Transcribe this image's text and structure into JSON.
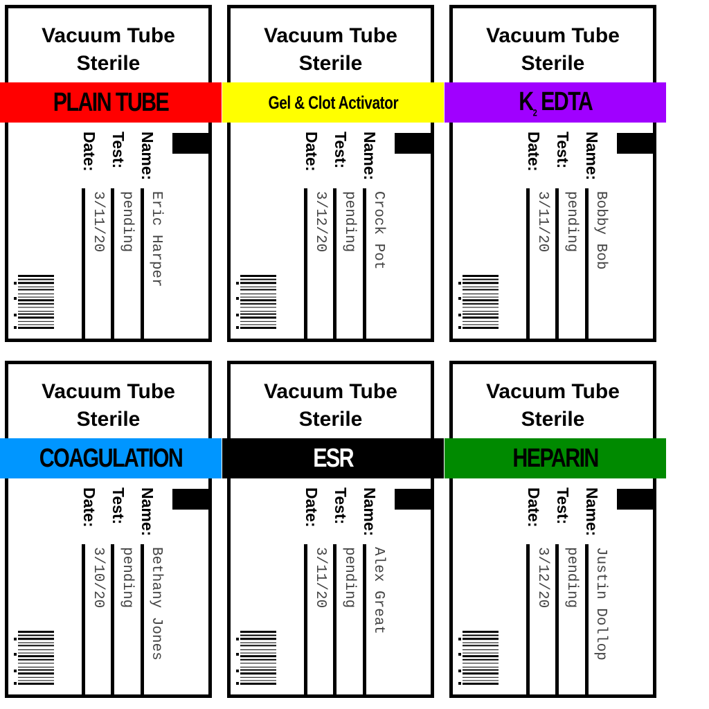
{
  "labels": [
    {
      "heading_line1": "Vacuum Tube",
      "heading_line2": "Sterile",
      "tube_type": "PLAIN TUBE",
      "band_color": "#ff0000",
      "band_text_color": "#000000",
      "name_label": "Name:",
      "name_value": "Eric Harper",
      "test_label": "Test:",
      "test_value": "pending",
      "date_label": "Date:",
      "date_value": "3/11/20"
    },
    {
      "heading_line1": "Vacuum Tube",
      "heading_line2": "Sterile",
      "tube_type": "Gel & Clot Activator",
      "band_color": "#ffff00",
      "band_text_color": "#000000",
      "name_label": "Name:",
      "name_value": "Crock Pot",
      "test_label": "Test:",
      "test_value": "pending",
      "date_label": "Date:",
      "date_value": "3/12/20"
    },
    {
      "heading_line1": "Vacuum Tube",
      "heading_line2": "Sterile",
      "tube_type": "K",
      "tube_type_subscript": "2",
      "tube_type_rest": " EDTA",
      "band_color": "#a000ff",
      "band_text_color": "#000000",
      "name_label": "Name:",
      "name_value": "Bobby Bob",
      "test_label": "Test:",
      "test_value": "pending",
      "date_label": "Date:",
      "date_value": "3/11/20"
    },
    {
      "heading_line1": "Vacuum Tube",
      "heading_line2": "Sterile",
      "tube_type": "COAGULATION",
      "band_color": "#0096ff",
      "band_text_color": "#000000",
      "name_label": "Name:",
      "name_value": "Bethany Jones",
      "test_label": "Test:",
      "test_value": "pending",
      "date_label": "Date:",
      "date_value": "3/10/20"
    },
    {
      "heading_line1": "Vacuum Tube",
      "heading_line2": "Sterile",
      "tube_type": "ESR",
      "band_color": "#000000",
      "band_text_color": "#ffffff",
      "name_label": "Name:",
      "name_value": "Alex Great",
      "test_label": "Test:",
      "test_value": "pending",
      "date_label": "Date:",
      "date_value": "3/11/20"
    },
    {
      "heading_line1": "Vacuum Tube",
      "heading_line2": "Sterile",
      "tube_type": "HEPARIN",
      "band_color": "#008a00",
      "band_text_color": "#000000",
      "name_label": "Name:",
      "name_value": "Justin Dollop",
      "test_label": "Test:",
      "test_value": "pending",
      "date_label": "Date:",
      "date_value": "3/12/20"
    }
  ]
}
